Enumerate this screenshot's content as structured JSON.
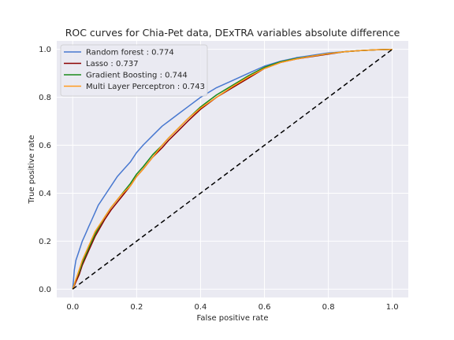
{
  "chart_data": {
    "type": "line",
    "title": "ROC curves for Chia-Pet data, DExTRA variables absolute difference",
    "xlabel": "False positive rate",
    "ylabel": "True positive rate",
    "xlim": [
      -0.05,
      1.05
    ],
    "ylim": [
      -0.035,
      1.035
    ],
    "xticks": [
      0.0,
      0.2,
      0.4,
      0.6,
      0.8,
      1.0
    ],
    "xtick_labels": [
      "0.0",
      "0.2",
      "0.4",
      "0.6",
      "0.8",
      "1.0"
    ],
    "yticks": [
      0.0,
      0.2,
      0.4,
      0.6,
      0.8,
      1.0
    ],
    "ytick_labels": [
      "0.0",
      "0.2",
      "0.4",
      "0.6",
      "0.8",
      "1.0"
    ],
    "grid": true,
    "legend_position": "top-left",
    "series": [
      {
        "name": "Random forest : 0.774",
        "color": "#4878d0",
        "x": [
          0.0,
          0.005,
          0.01,
          0.02,
          0.03,
          0.04,
          0.05,
          0.06,
          0.07,
          0.08,
          0.09,
          0.1,
          0.12,
          0.14,
          0.16,
          0.18,
          0.2,
          0.22,
          0.25,
          0.28,
          0.3,
          0.33,
          0.36,
          0.4,
          0.45,
          0.5,
          0.55,
          0.6,
          0.65,
          0.7,
          0.75,
          0.8,
          0.85,
          0.9,
          0.95,
          1.0
        ],
        "y": [
          0.0,
          0.08,
          0.12,
          0.16,
          0.2,
          0.23,
          0.26,
          0.29,
          0.32,
          0.35,
          0.37,
          0.39,
          0.43,
          0.47,
          0.5,
          0.53,
          0.57,
          0.6,
          0.64,
          0.68,
          0.7,
          0.73,
          0.76,
          0.8,
          0.84,
          0.87,
          0.9,
          0.93,
          0.95,
          0.965,
          0.975,
          0.985,
          0.99,
          0.995,
          0.998,
          1.0
        ]
      },
      {
        "name": "Lasso : 0.737",
        "color": "#8b0000",
        "x": [
          0.0,
          0.01,
          0.02,
          0.03,
          0.05,
          0.07,
          0.1,
          0.12,
          0.15,
          0.18,
          0.2,
          0.22,
          0.25,
          0.28,
          0.3,
          0.33,
          0.36,
          0.4,
          0.45,
          0.5,
          0.55,
          0.6,
          0.65,
          0.7,
          0.75,
          0.8,
          0.85,
          0.9,
          0.95,
          1.0
        ],
        "y": [
          0.0,
          0.03,
          0.06,
          0.1,
          0.16,
          0.22,
          0.29,
          0.33,
          0.38,
          0.43,
          0.47,
          0.5,
          0.55,
          0.59,
          0.62,
          0.66,
          0.7,
          0.75,
          0.8,
          0.84,
          0.88,
          0.92,
          0.945,
          0.96,
          0.97,
          0.98,
          0.99,
          0.995,
          0.998,
          1.0
        ]
      },
      {
        "name": "Gradient Boosting : 0.744",
        "color": "#1a8a1a",
        "x": [
          0.0,
          0.01,
          0.02,
          0.03,
          0.05,
          0.07,
          0.1,
          0.12,
          0.15,
          0.18,
          0.2,
          0.22,
          0.25,
          0.28,
          0.3,
          0.33,
          0.36,
          0.4,
          0.45,
          0.5,
          0.55,
          0.6,
          0.65,
          0.7,
          0.75,
          0.8,
          0.85,
          0.9,
          0.95,
          1.0
        ],
        "y": [
          0.0,
          0.04,
          0.07,
          0.11,
          0.17,
          0.23,
          0.3,
          0.34,
          0.39,
          0.44,
          0.48,
          0.51,
          0.56,
          0.6,
          0.63,
          0.67,
          0.71,
          0.76,
          0.81,
          0.85,
          0.89,
          0.925,
          0.948,
          0.962,
          0.972,
          0.982,
          0.99,
          0.995,
          0.998,
          1.0
        ]
      },
      {
        "name": "Multi Layer Perceptron : 0.743",
        "color": "#ff9a1e",
        "x": [
          0.0,
          0.01,
          0.02,
          0.03,
          0.05,
          0.07,
          0.1,
          0.12,
          0.15,
          0.18,
          0.2,
          0.22,
          0.25,
          0.28,
          0.3,
          0.33,
          0.36,
          0.4,
          0.45,
          0.5,
          0.55,
          0.6,
          0.65,
          0.7,
          0.75,
          0.8,
          0.85,
          0.9,
          0.95,
          1.0
        ],
        "y": [
          0.0,
          0.04,
          0.08,
          0.12,
          0.18,
          0.24,
          0.3,
          0.34,
          0.39,
          0.43,
          0.47,
          0.5,
          0.55,
          0.6,
          0.63,
          0.67,
          0.71,
          0.755,
          0.8,
          0.845,
          0.885,
          0.92,
          0.945,
          0.96,
          0.972,
          0.982,
          0.99,
          0.995,
          0.998,
          1.0
        ]
      }
    ],
    "reference_line": {
      "style": "dashed",
      "color": "#000000",
      "x": [
        0.0,
        1.0
      ],
      "y": [
        0.0,
        1.0
      ]
    }
  },
  "colors": {
    "plot_background": "#eaeaf2",
    "grid": "#ffffff",
    "text": "#262626"
  }
}
